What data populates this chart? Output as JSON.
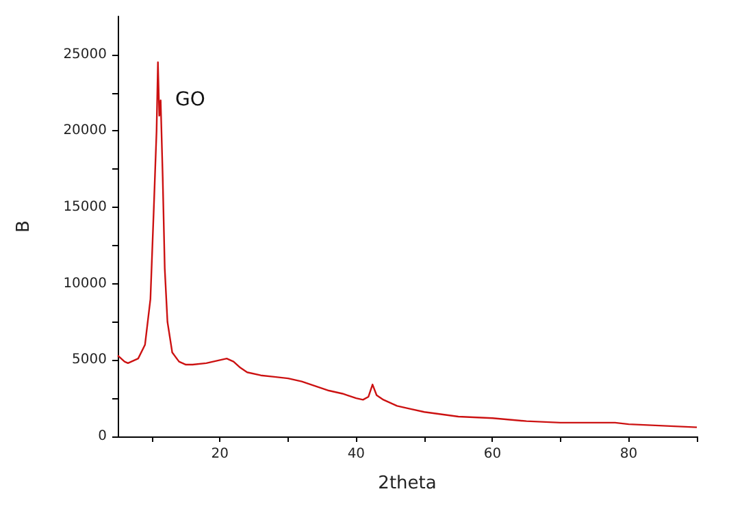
{
  "chart_data": {
    "type": "line",
    "xlabel": "2theta",
    "ylabel": "B",
    "xlim": [
      5,
      90
    ],
    "xticks": [
      {
        "value": 10,
        "label": null
      },
      20,
      {
        "value": 30,
        "label": null
      },
      40,
      {
        "value": 50,
        "label": null
      },
      60,
      {
        "value": 70,
        "label": null
      },
      80,
      {
        "value": 90,
        "label": null
      }
    ],
    "ylim": [
      0,
      27500
    ],
    "yticks": [
      0,
      {
        "value": 2500,
        "label": null
      },
      5000,
      {
        "value": 7500,
        "label": null
      },
      10000,
      {
        "value": 12500,
        "label": null
      },
      15000,
      {
        "value": 17500,
        "label": null
      },
      20000,
      {
        "value": 22500,
        "label": null
      },
      25000
    ],
    "grid": false,
    "marker": "none",
    "line_style": "solid",
    "annotations": [
      "GO"
    ],
    "series": [
      {
        "color": "#cc1111",
        "x": [
          5,
          6,
          6.5,
          8,
          9,
          9.8,
          10.3,
          10.7,
          10.9,
          11.1,
          11.3,
          11.6,
          11.9,
          12.3,
          13,
          14,
          15,
          16,
          18,
          20,
          21,
          22,
          23,
          24,
          26,
          28,
          30,
          32,
          34,
          36,
          38,
          40,
          41,
          41.8,
          42.4,
          43,
          44,
          46,
          48,
          50,
          55,
          60,
          65,
          70,
          75,
          77,
          78,
          80,
          85,
          90
        ],
        "values": [
          5300,
          4900,
          4800,
          5100,
          6000,
          9000,
          15000,
          20000,
          24500,
          21000,
          22000,
          17000,
          11000,
          7500,
          5500,
          4900,
          4700,
          4700,
          4800,
          5000,
          5100,
          4900,
          4500,
          4200,
          4000,
          3900,
          3800,
          3600,
          3300,
          3000,
          2800,
          2500,
          2400,
          2600,
          3400,
          2700,
          2400,
          2000,
          1800,
          1600,
          1300,
          1200,
          1000,
          900,
          900,
          900,
          900,
          800,
          700,
          600
        ]
      }
    ]
  }
}
